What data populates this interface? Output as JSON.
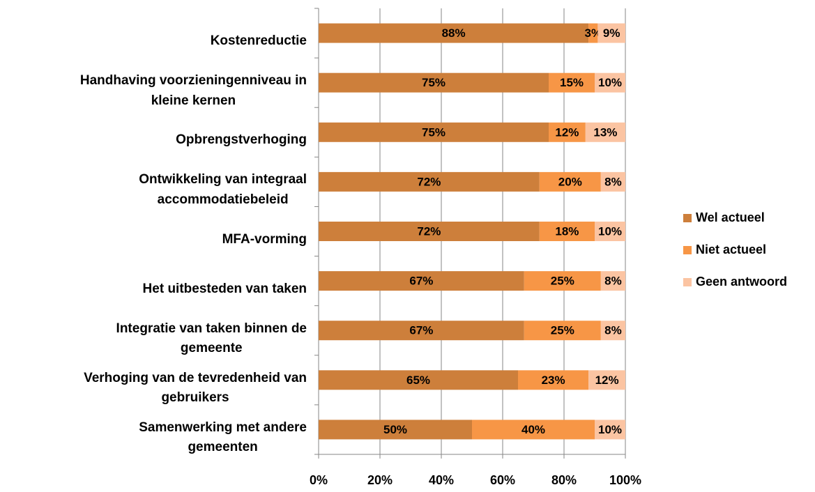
{
  "chart_data": {
    "type": "stacked_bar_horizontal",
    "categories": [
      "Kostenreductie",
      "Handhaving voorzieningenniveau in\nkleine kernen",
      "Opbrengstverhoging",
      "Ontwikkeling van integraal\naccommodatiebeleid",
      "MFA-vorming",
      "Het uitbesteden van taken",
      "Integratie van taken binnen de\ngemeente",
      "Verhoging van de tevredenheid van\ngebruikers",
      "Samenwerking met andere\ngemeenten"
    ],
    "series": [
      {
        "name": "Wel actueel",
        "color": "#cd7f3b",
        "values": [
          88,
          75,
          75,
          72,
          72,
          67,
          67,
          65,
          50
        ],
        "value_labels": [
          "88%",
          "75%",
          "75%",
          "72%",
          "72%",
          "67%",
          "67%",
          "65%",
          "50%"
        ]
      },
      {
        "name": "Niet actueel",
        "color": "#f79646",
        "values": [
          3,
          15,
          12,
          20,
          18,
          25,
          25,
          23,
          40
        ],
        "value_labels": [
          "3%",
          "15%",
          "12%",
          "20%",
          "18%",
          "25%",
          "25%",
          "23%",
          "40%"
        ]
      },
      {
        "name": "Geen antwoord",
        "color": "#fbc4a2",
        "values": [
          9,
          10,
          13,
          8,
          10,
          8,
          8,
          12,
          10
        ],
        "value_labels": [
          "9%",
          "10%",
          "13%",
          "8%",
          "10%",
          "8%",
          "8%",
          "12%",
          "10%"
        ]
      }
    ],
    "xlim": [
      0,
      100
    ],
    "xticks": [
      {
        "value": 0,
        "label": "0%"
      },
      {
        "value": 20,
        "label": "20%"
      },
      {
        "value": 40,
        "label": "40%"
      },
      {
        "value": 60,
        "label": "60%"
      },
      {
        "value": 80,
        "label": "80%"
      },
      {
        "value": 100,
        "label": "100%"
      }
    ],
    "grid": true,
    "legend": "right"
  }
}
